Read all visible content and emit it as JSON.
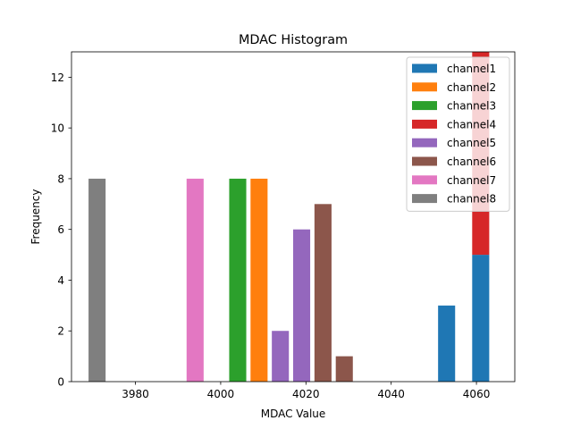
{
  "chart_data": {
    "type": "bar",
    "stacked": true,
    "title": "MDAC Histogram",
    "xlabel": "MDAC Value",
    "ylabel": "Frequency",
    "xlim": [
      3965,
      4069
    ],
    "ylim": [
      0,
      13
    ],
    "xticks": [
      3980,
      4000,
      4020,
      4040,
      4060
    ],
    "yticks": [
      0,
      2,
      4,
      6,
      8,
      10,
      12
    ],
    "bar_width": 4,
    "legend_position": "top-right",
    "series": [
      {
        "name": "channel1",
        "color": "#1f77b4",
        "bars": [
          {
            "x": 4053,
            "value": 3
          },
          {
            "x": 4061,
            "value": 5
          }
        ]
      },
      {
        "name": "channel2",
        "color": "#ff7f0e",
        "bars": [
          {
            "x": 4009,
            "value": 8
          }
        ]
      },
      {
        "name": "channel3",
        "color": "#2ca02c",
        "bars": [
          {
            "x": 4004,
            "value": 8
          }
        ]
      },
      {
        "name": "channel4",
        "color": "#d62728",
        "bars": [
          {
            "x": 4061,
            "value": 8
          }
        ]
      },
      {
        "name": "channel5",
        "color": "#9467bd",
        "bars": [
          {
            "x": 4014,
            "value": 2
          },
          {
            "x": 4019,
            "value": 6
          }
        ]
      },
      {
        "name": "channel6",
        "color": "#8c564b",
        "bars": [
          {
            "x": 4024,
            "value": 7
          },
          {
            "x": 4029,
            "value": 1
          }
        ]
      },
      {
        "name": "channel7",
        "color": "#e377c2",
        "bars": [
          {
            "x": 3994,
            "value": 8
          }
        ]
      },
      {
        "name": "channel8",
        "color": "#7f7f7f",
        "bars": [
          {
            "x": 3971,
            "value": 8
          }
        ]
      }
    ]
  }
}
